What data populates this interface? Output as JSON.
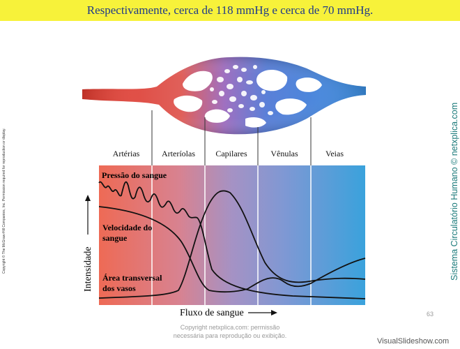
{
  "header": {
    "text": "Respectivamente, cerca de 118 mmHg e cerca de 70 mmHg."
  },
  "side_copyright": "Copyright © The McGraw-Hill Companies, Inc. Permission required for reproduction or display.",
  "side_title": "Sistema Circulatório Humano © netxplica.com",
  "diagram": {
    "segments": [
      "Artérias",
      "Arteríolas",
      "Capilares",
      "Vênulas",
      "Veias"
    ],
    "curve_labels": {
      "pressure": "Pressão do sangue",
      "velocity_1": "Velocidade do",
      "velocity_2": "sangue",
      "area_1": "Área transversal",
      "area_2": "dos vasos"
    },
    "y_axis_label": "Intensidade",
    "x_axis_label": "Fluxo de sangue",
    "colors": {
      "arterial": "#e8574a",
      "capillary": "#a088c0",
      "venous": "#3aa0d8"
    }
  },
  "footer": {
    "line1": "Copyright netxplica.com: permissão",
    "line2": "necessária para reprodução ou exibição."
  },
  "page_number": "63",
  "watermark": "VisualSlideshow.com"
}
